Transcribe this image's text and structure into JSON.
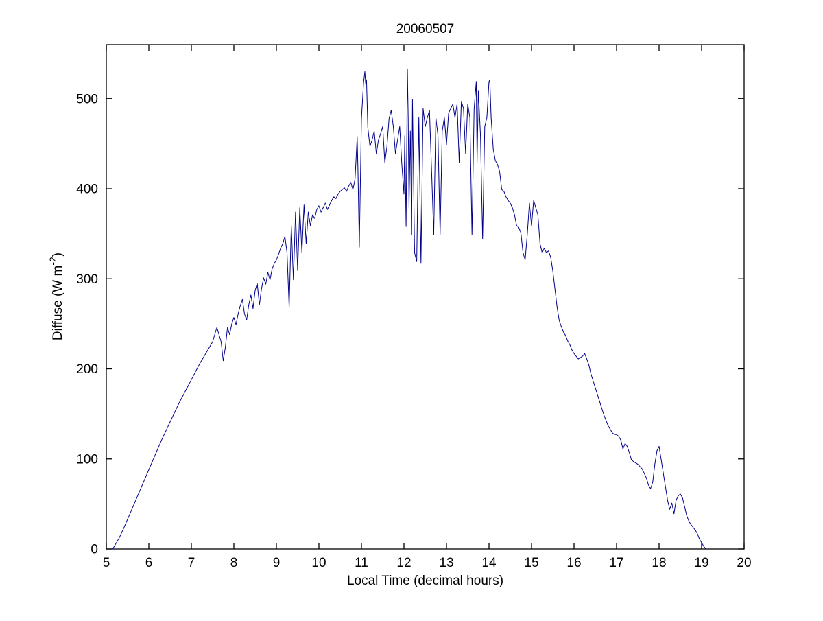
{
  "figure": {
    "title": "20060507",
    "xlabel": "Local Time (decimal hours)",
    "ylabel_prefix": "Diffuse (W m",
    "ylabel_superscript": "-2",
    "ylabel_suffix": ")"
  },
  "chart_data": {
    "type": "line",
    "title": "20060507",
    "xlabel": "Local Time (decimal hours)",
    "ylabel": "Diffuse (W m^-2)",
    "xlim": [
      5,
      20
    ],
    "ylim": [
      0,
      560
    ],
    "xticks": [
      5,
      6,
      7,
      8,
      9,
      10,
      11,
      12,
      13,
      14,
      15,
      16,
      17,
      18,
      19,
      20
    ],
    "yticks": [
      0,
      100,
      200,
      300,
      400,
      500
    ],
    "grid": false,
    "legend": "none",
    "line_color": "#00008B",
    "axis_color": "#000000",
    "points": [
      [
        5.15,
        0
      ],
      [
        5.2,
        4
      ],
      [
        5.3,
        12
      ],
      [
        5.4,
        22
      ],
      [
        5.5,
        33
      ],
      [
        5.6,
        44
      ],
      [
        5.7,
        55
      ],
      [
        5.8,
        66
      ],
      [
        5.9,
        77
      ],
      [
        6.0,
        88
      ],
      [
        6.1,
        99
      ],
      [
        6.2,
        110
      ],
      [
        6.3,
        121
      ],
      [
        6.4,
        131
      ],
      [
        6.5,
        141
      ],
      [
        6.6,
        151
      ],
      [
        6.7,
        161
      ],
      [
        6.8,
        170
      ],
      [
        6.9,
        179
      ],
      [
        7.0,
        188
      ],
      [
        7.1,
        197
      ],
      [
        7.2,
        206
      ],
      [
        7.3,
        214
      ],
      [
        7.4,
        222
      ],
      [
        7.5,
        230
      ],
      [
        7.55,
        238
      ],
      [
        7.6,
        246
      ],
      [
        7.65,
        238
      ],
      [
        7.7,
        230
      ],
      [
        7.75,
        209
      ],
      [
        7.8,
        224
      ],
      [
        7.85,
        246
      ],
      [
        7.9,
        238
      ],
      [
        7.95,
        250
      ],
      [
        8.0,
        257
      ],
      [
        8.05,
        249
      ],
      [
        8.1,
        261
      ],
      [
        8.15,
        270
      ],
      [
        8.2,
        277
      ],
      [
        8.25,
        261
      ],
      [
        8.3,
        254
      ],
      [
        8.35,
        271
      ],
      [
        8.4,
        282
      ],
      [
        8.45,
        267
      ],
      [
        8.5,
        287
      ],
      [
        8.55,
        295
      ],
      [
        8.6,
        271
      ],
      [
        8.65,
        289
      ],
      [
        8.7,
        301
      ],
      [
        8.75,
        294
      ],
      [
        8.8,
        307
      ],
      [
        8.85,
        299
      ],
      [
        8.9,
        311
      ],
      [
        8.95,
        317
      ],
      [
        9.0,
        321
      ],
      [
        9.05,
        327
      ],
      [
        9.1,
        334
      ],
      [
        9.15,
        339
      ],
      [
        9.2,
        347
      ],
      [
        9.25,
        329
      ],
      [
        9.3,
        268
      ],
      [
        9.35,
        359
      ],
      [
        9.4,
        299
      ],
      [
        9.45,
        374
      ],
      [
        9.5,
        309
      ],
      [
        9.55,
        379
      ],
      [
        9.6,
        329
      ],
      [
        9.65,
        382
      ],
      [
        9.7,
        339
      ],
      [
        9.75,
        374
      ],
      [
        9.8,
        359
      ],
      [
        9.85,
        371
      ],
      [
        9.9,
        367
      ],
      [
        9.95,
        377
      ],
      [
        10.0,
        381
      ],
      [
        10.05,
        374
      ],
      [
        10.1,
        379
      ],
      [
        10.15,
        384
      ],
      [
        10.2,
        377
      ],
      [
        10.25,
        382
      ],
      [
        10.3,
        387
      ],
      [
        10.35,
        391
      ],
      [
        10.4,
        389
      ],
      [
        10.45,
        394
      ],
      [
        10.5,
        397
      ],
      [
        10.55,
        399
      ],
      [
        10.6,
        401
      ],
      [
        10.65,
        397
      ],
      [
        10.7,
        403
      ],
      [
        10.75,
        407
      ],
      [
        10.8,
        399
      ],
      [
        10.85,
        411
      ],
      [
        10.9,
        458
      ],
      [
        10.92,
        418
      ],
      [
        10.95,
        335
      ],
      [
        11.0,
        478
      ],
      [
        11.05,
        518
      ],
      [
        11.08,
        530
      ],
      [
        11.1,
        516
      ],
      [
        11.12,
        521
      ],
      [
        11.15,
        468
      ],
      [
        11.2,
        447
      ],
      [
        11.25,
        454
      ],
      [
        11.3,
        464
      ],
      [
        11.35,
        439
      ],
      [
        11.4,
        454
      ],
      [
        11.45,
        461
      ],
      [
        11.5,
        469
      ],
      [
        11.55,
        429
      ],
      [
        11.6,
        447
      ],
      [
        11.65,
        478
      ],
      [
        11.7,
        487
      ],
      [
        11.75,
        469
      ],
      [
        11.8,
        439
      ],
      [
        11.85,
        454
      ],
      [
        11.9,
        469
      ],
      [
        11.95,
        427
      ],
      [
        12.0,
        394
      ],
      [
        12.02,
        459
      ],
      [
        12.05,
        358
      ],
      [
        12.08,
        533
      ],
      [
        12.1,
        478
      ],
      [
        12.12,
        379
      ],
      [
        12.15,
        464
      ],
      [
        12.18,
        349
      ],
      [
        12.2,
        499
      ],
      [
        12.25,
        329
      ],
      [
        12.3,
        319
      ],
      [
        12.35,
        479
      ],
      [
        12.4,
        317
      ],
      [
        12.45,
        489
      ],
      [
        12.5,
        469
      ],
      [
        12.55,
        479
      ],
      [
        12.6,
        487
      ],
      [
        12.65,
        419
      ],
      [
        12.7,
        349
      ],
      [
        12.75,
        479
      ],
      [
        12.8,
        459
      ],
      [
        12.85,
        349
      ],
      [
        12.9,
        464
      ],
      [
        12.95,
        479
      ],
      [
        13.0,
        449
      ],
      [
        13.05,
        484
      ],
      [
        13.1,
        489
      ],
      [
        13.15,
        494
      ],
      [
        13.2,
        479
      ],
      [
        13.25,
        494
      ],
      [
        13.3,
        429
      ],
      [
        13.35,
        497
      ],
      [
        13.4,
        489
      ],
      [
        13.45,
        439
      ],
      [
        13.5,
        494
      ],
      [
        13.55,
        479
      ],
      [
        13.6,
        349
      ],
      [
        13.65,
        489
      ],
      [
        13.7,
        519
      ],
      [
        13.72,
        429
      ],
      [
        13.75,
        509
      ],
      [
        13.8,
        459
      ],
      [
        13.85,
        344
      ],
      [
        13.9,
        469
      ],
      [
        13.95,
        479
      ],
      [
        14.0,
        519
      ],
      [
        14.02,
        521
      ],
      [
        14.05,
        479
      ],
      [
        14.1,
        444
      ],
      [
        14.15,
        431
      ],
      [
        14.2,
        427
      ],
      [
        14.25,
        419
      ],
      [
        14.3,
        399
      ],
      [
        14.35,
        397
      ],
      [
        14.4,
        391
      ],
      [
        14.45,
        387
      ],
      [
        14.5,
        384
      ],
      [
        14.55,
        379
      ],
      [
        14.6,
        371
      ],
      [
        14.65,
        359
      ],
      [
        14.7,
        357
      ],
      [
        14.75,
        351
      ],
      [
        14.8,
        329
      ],
      [
        14.85,
        321
      ],
      [
        14.9,
        349
      ],
      [
        14.95,
        384
      ],
      [
        15.0,
        359
      ],
      [
        15.05,
        387
      ],
      [
        15.1,
        379
      ],
      [
        15.15,
        371
      ],
      [
        15.2,
        339
      ],
      [
        15.25,
        329
      ],
      [
        15.3,
        334
      ],
      [
        15.35,
        329
      ],
      [
        15.4,
        331
      ],
      [
        15.45,
        324
      ],
      [
        15.5,
        309
      ],
      [
        15.55,
        289
      ],
      [
        15.6,
        269
      ],
      [
        15.65,
        254
      ],
      [
        15.7,
        247
      ],
      [
        15.75,
        241
      ],
      [
        15.8,
        237
      ],
      [
        15.85,
        231
      ],
      [
        15.9,
        227
      ],
      [
        15.95,
        221
      ],
      [
        16.0,
        217
      ],
      [
        16.1,
        211
      ],
      [
        16.2,
        214
      ],
      [
        16.25,
        217
      ],
      [
        16.3,
        211
      ],
      [
        16.35,
        204
      ],
      [
        16.4,
        194
      ],
      [
        16.5,
        179
      ],
      [
        16.6,
        164
      ],
      [
        16.7,
        149
      ],
      [
        16.8,
        137
      ],
      [
        16.9,
        129
      ],
      [
        16.95,
        127
      ],
      [
        17.0,
        127
      ],
      [
        17.05,
        125
      ],
      [
        17.1,
        121
      ],
      [
        17.15,
        111
      ],
      [
        17.2,
        117
      ],
      [
        17.25,
        114
      ],
      [
        17.3,
        107
      ],
      [
        17.35,
        99
      ],
      [
        17.4,
        97
      ],
      [
        17.5,
        94
      ],
      [
        17.6,
        89
      ],
      [
        17.7,
        79
      ],
      [
        17.75,
        71
      ],
      [
        17.8,
        67
      ],
      [
        17.85,
        74
      ],
      [
        17.9,
        94
      ],
      [
        17.95,
        109
      ],
      [
        18.0,
        114
      ],
      [
        18.05,
        99
      ],
      [
        18.1,
        84
      ],
      [
        18.15,
        69
      ],
      [
        18.2,
        54
      ],
      [
        18.25,
        44
      ],
      [
        18.3,
        51
      ],
      [
        18.35,
        39
      ],
      [
        18.4,
        54
      ],
      [
        18.45,
        59
      ],
      [
        18.5,
        61
      ],
      [
        18.55,
        57
      ],
      [
        18.6,
        47
      ],
      [
        18.65,
        37
      ],
      [
        18.7,
        31
      ],
      [
        18.75,
        27
      ],
      [
        18.8,
        24
      ],
      [
        18.85,
        21
      ],
      [
        18.9,
        17
      ],
      [
        18.95,
        11
      ],
      [
        19.0,
        7
      ],
      [
        19.05,
        3
      ],
      [
        19.1,
        0
      ]
    ]
  }
}
